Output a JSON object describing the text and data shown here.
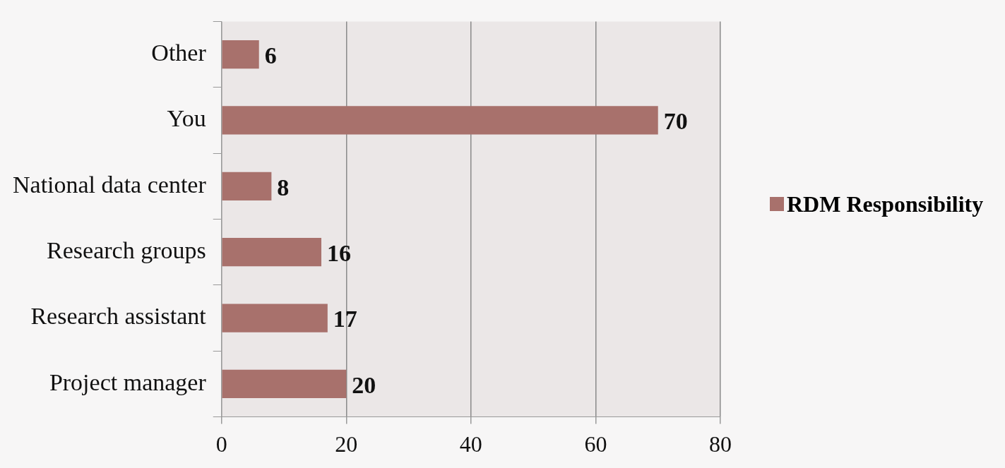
{
  "chart_data": {
    "type": "bar",
    "orientation": "horizontal",
    "categories": [
      "Other",
      "You",
      "National data center",
      "Research groups",
      "Research assistant",
      "Project manager"
    ],
    "series": [
      {
        "name": "RDM Responsibility",
        "color": "#a8716c",
        "values": [
          6,
          70,
          8,
          16,
          17,
          20
        ]
      }
    ],
    "xlim": [
      0,
      80
    ],
    "xticks": [
      0,
      20,
      40,
      60,
      80
    ],
    "grid": "x",
    "legend": "right",
    "data_labels": true
  }
}
